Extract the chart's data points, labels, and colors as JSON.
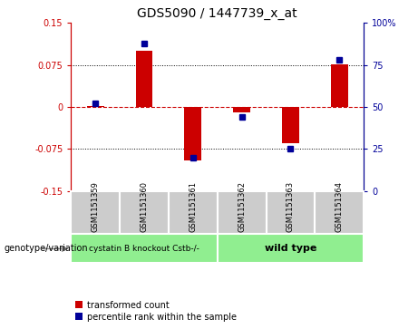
{
  "title": "GDS5090 / 1447739_x_at",
  "categories": [
    "GSM1151359",
    "GSM1151360",
    "GSM1151361",
    "GSM1151362",
    "GSM1151363",
    "GSM1151364"
  ],
  "red_values": [
    0.002,
    0.1,
    -0.095,
    -0.01,
    -0.065,
    0.076
  ],
  "blue_values": [
    52,
    88,
    20,
    44,
    25,
    78
  ],
  "ylim_left": [
    -0.15,
    0.15
  ],
  "ylim_right": [
    0,
    100
  ],
  "yticks_left": [
    -0.15,
    -0.075,
    0,
    0.075,
    0.15
  ],
  "yticks_right": [
    0,
    25,
    50,
    75,
    100
  ],
  "ytick_labels_left": [
    "-0.15",
    "-0.075",
    "0",
    "0.075",
    "0.15"
  ],
  "ytick_labels_right": [
    "0",
    "25",
    "50",
    "75",
    "100%"
  ],
  "group1_indices": [
    0,
    1,
    2
  ],
  "group2_indices": [
    3,
    4,
    5
  ],
  "group1_label": "cystatin B knockout Cstb-/-",
  "group2_label": "wild type",
  "group1_color": "#90EE90",
  "group2_color": "#90EE90",
  "bar_color": "#cc0000",
  "dot_color": "#000099",
  "bar_width": 0.35,
  "hline_color": "#cc0000",
  "hline_style": "--",
  "gridline_color": "#000000",
  "gridline_style": ":",
  "legend_red_label": "transformed count",
  "legend_blue_label": "percentile rank within the sample",
  "bg_color": "#ffffff",
  "sample_box_color": "#cccccc",
  "left_axis_color": "#cc0000",
  "right_axis_color": "#000099",
  "genotype_label": "genotype/variation"
}
